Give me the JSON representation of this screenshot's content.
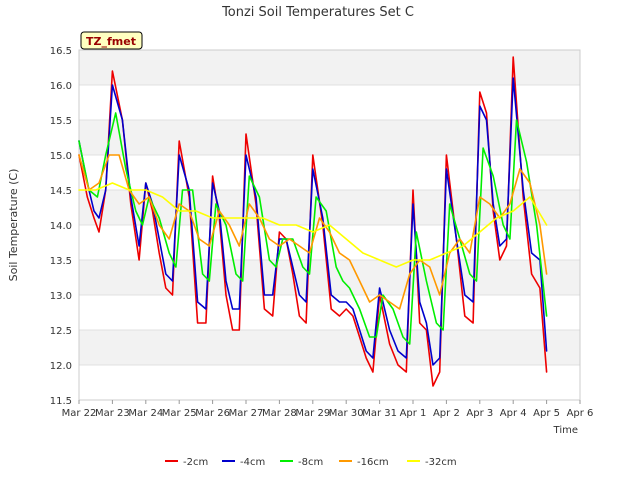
{
  "chart_data": {
    "type": "line",
    "title": "Tonzi Soil Temperatures Set C",
    "xlabel": "Time",
    "ylabel": "Soil Temperature (C)",
    "annotation": "TZ_fmet",
    "x_ticks": [
      "Mar 22",
      "Mar 23",
      "Mar 24",
      "Mar 25",
      "Mar 26",
      "Mar 27",
      "Mar 28",
      "Mar 29",
      "Mar 30",
      "Mar 31",
      "Apr 1",
      "Apr 2",
      "Apr 3",
      "Apr 4",
      "Apr 5",
      "Apr 6"
    ],
    "xlim": [
      0,
      15
    ],
    "ylim": [
      11.5,
      16.5
    ],
    "y_ticks": [
      11.5,
      12.0,
      12.5,
      13.0,
      13.5,
      14.0,
      14.5,
      15.0,
      15.5,
      16.0,
      16.5
    ],
    "grid": "horizontal bands",
    "legend_position": "bottom",
    "colors": {
      "-2cm": "#ee0000",
      "-4cm": "#0000cc",
      "-8cm": "#00ee00",
      "-16cm": "#ff9900",
      "-32cm": "#ffff00"
    },
    "series": [
      {
        "name": "-2cm",
        "x": [
          0.0,
          0.25,
          0.45,
          0.6,
          0.8,
          1.0,
          1.3,
          1.55,
          1.8,
          2.0,
          2.2,
          2.4,
          2.6,
          2.8,
          3.0,
          3.3,
          3.55,
          3.8,
          4.0,
          4.2,
          4.4,
          4.6,
          4.8,
          5.0,
          5.3,
          5.55,
          5.8,
          6.0,
          6.2,
          6.4,
          6.6,
          6.8,
          7.0,
          7.3,
          7.55,
          7.8,
          8.0,
          8.2,
          8.4,
          8.6,
          8.8,
          9.0,
          9.3,
          9.55,
          9.8,
          10.0,
          10.2,
          10.4,
          10.6,
          10.8,
          11.0,
          11.3,
          11.55,
          11.8,
          12.0,
          12.2,
          12.4,
          12.6,
          12.8,
          13.0,
          13.3,
          13.55,
          13.8,
          14.0
        ],
        "y": [
          15.0,
          14.4,
          14.1,
          13.9,
          14.5,
          16.2,
          15.5,
          14.3,
          13.5,
          14.6,
          14.2,
          13.6,
          13.1,
          13.0,
          15.2,
          14.4,
          12.6,
          12.6,
          14.7,
          14.1,
          13.0,
          12.5,
          12.5,
          15.3,
          14.3,
          12.8,
          12.7,
          13.9,
          13.8,
          13.3,
          12.7,
          12.6,
          15.0,
          14.0,
          12.8,
          12.7,
          12.8,
          12.7,
          12.4,
          12.1,
          11.9,
          13.0,
          12.3,
          12.0,
          11.9,
          14.5,
          12.6,
          12.5,
          11.7,
          11.9,
          15.0,
          13.8,
          12.7,
          12.6,
          15.9,
          15.6,
          14.2,
          13.5,
          13.7,
          16.4,
          14.4,
          13.3,
          13.1,
          11.9
        ]
      },
      {
        "name": "-4cm",
        "x": [
          0.0,
          0.25,
          0.45,
          0.6,
          0.8,
          1.0,
          1.3,
          1.55,
          1.8,
          2.0,
          2.2,
          2.4,
          2.6,
          2.8,
          3.0,
          3.3,
          3.55,
          3.8,
          4.0,
          4.2,
          4.4,
          4.6,
          4.8,
          5.0,
          5.3,
          5.55,
          5.8,
          6.0,
          6.2,
          6.4,
          6.6,
          6.8,
          7.0,
          7.3,
          7.55,
          7.8,
          8.0,
          8.2,
          8.4,
          8.6,
          8.8,
          9.0,
          9.3,
          9.55,
          9.8,
          10.0,
          10.2,
          10.4,
          10.6,
          10.8,
          11.0,
          11.3,
          11.55,
          11.8,
          12.0,
          12.2,
          12.4,
          12.6,
          12.8,
          13.0,
          13.3,
          13.55,
          13.8,
          14.0
        ],
        "y": [
          15.2,
          14.6,
          14.2,
          14.1,
          14.5,
          16.0,
          15.5,
          14.4,
          13.7,
          14.6,
          14.3,
          13.8,
          13.3,
          13.2,
          15.0,
          14.5,
          12.9,
          12.8,
          14.6,
          14.2,
          13.2,
          12.8,
          12.8,
          15.0,
          14.4,
          13.0,
          13.0,
          13.8,
          13.8,
          13.4,
          13.0,
          12.9,
          14.8,
          14.1,
          13.0,
          12.9,
          12.9,
          12.8,
          12.5,
          12.2,
          12.1,
          13.1,
          12.5,
          12.2,
          12.1,
          14.3,
          12.9,
          12.6,
          12.0,
          12.1,
          14.8,
          13.8,
          13.0,
          12.9,
          15.7,
          15.5,
          14.3,
          13.7,
          13.8,
          16.1,
          14.5,
          13.6,
          13.5,
          12.2
        ]
      },
      {
        "name": "-8cm",
        "x": [
          0.0,
          0.3,
          0.55,
          0.8,
          1.1,
          1.4,
          1.7,
          1.9,
          2.1,
          2.4,
          2.7,
          2.9,
          3.1,
          3.4,
          3.7,
          3.9,
          4.1,
          4.4,
          4.7,
          4.9,
          5.1,
          5.4,
          5.7,
          5.9,
          6.1,
          6.4,
          6.7,
          6.9,
          7.1,
          7.4,
          7.7,
          7.9,
          8.1,
          8.4,
          8.7,
          8.9,
          9.1,
          9.4,
          9.7,
          9.9,
          10.1,
          10.4,
          10.7,
          10.9,
          11.1,
          11.4,
          11.7,
          11.9,
          12.1,
          12.4,
          12.7,
          12.9,
          13.1,
          13.4,
          13.7,
          14.0
        ],
        "y": [
          15.2,
          14.5,
          14.4,
          15.0,
          15.6,
          14.8,
          14.2,
          14.0,
          14.4,
          14.1,
          13.6,
          13.4,
          14.5,
          14.5,
          13.3,
          13.2,
          14.3,
          14.0,
          13.3,
          13.2,
          14.7,
          14.4,
          13.5,
          13.4,
          13.8,
          13.8,
          13.4,
          13.3,
          14.4,
          14.2,
          13.4,
          13.2,
          13.1,
          12.8,
          12.4,
          12.4,
          13.0,
          12.8,
          12.4,
          12.3,
          13.9,
          13.2,
          12.6,
          12.5,
          14.3,
          13.8,
          13.3,
          13.2,
          15.1,
          14.7,
          14.0,
          13.8,
          15.5,
          14.9,
          14.0,
          12.7
        ]
      },
      {
        "name": "-16cm",
        "x": [
          0.0,
          0.3,
          0.6,
          0.9,
          1.2,
          1.5,
          1.8,
          2.1,
          2.4,
          2.7,
          3.0,
          3.3,
          3.6,
          3.9,
          4.2,
          4.5,
          4.8,
          5.1,
          5.4,
          5.7,
          6.0,
          6.3,
          6.6,
          6.9,
          7.2,
          7.5,
          7.8,
          8.1,
          8.4,
          8.7,
          9.0,
          9.3,
          9.6,
          9.9,
          10.2,
          10.5,
          10.8,
          11.1,
          11.4,
          11.7,
          12.0,
          12.3,
          12.6,
          12.9,
          13.2,
          13.5,
          13.8,
          14.0
        ],
        "y": [
          15.0,
          14.5,
          14.6,
          15.0,
          15.0,
          14.5,
          14.3,
          14.4,
          14.0,
          13.8,
          14.3,
          14.2,
          13.8,
          13.7,
          14.2,
          14.0,
          13.7,
          14.3,
          14.1,
          13.8,
          13.7,
          13.8,
          13.7,
          13.6,
          14.1,
          13.9,
          13.6,
          13.5,
          13.2,
          12.9,
          13.0,
          12.9,
          12.8,
          13.3,
          13.5,
          13.4,
          13.0,
          13.6,
          13.8,
          13.6,
          14.4,
          14.3,
          14.1,
          14.3,
          14.8,
          14.6,
          14.0,
          13.3
        ]
      },
      {
        "name": "-32cm",
        "x": [
          0.0,
          0.5,
          1.0,
          1.5,
          2.0,
          2.5,
          3.0,
          3.5,
          4.0,
          4.5,
          5.0,
          5.5,
          6.0,
          6.5,
          7.0,
          7.5,
          8.0,
          8.5,
          9.0,
          9.5,
          10.0,
          10.5,
          11.0,
          11.5,
          12.0,
          12.5,
          13.0,
          13.5,
          14.0
        ],
        "y": [
          14.5,
          14.5,
          14.6,
          14.5,
          14.5,
          14.4,
          14.2,
          14.2,
          14.1,
          14.1,
          14.1,
          14.1,
          14.0,
          14.0,
          13.9,
          14.0,
          13.8,
          13.6,
          13.5,
          13.4,
          13.5,
          13.5,
          13.6,
          13.7,
          13.9,
          14.1,
          14.2,
          14.4,
          14.0
        ]
      }
    ]
  }
}
